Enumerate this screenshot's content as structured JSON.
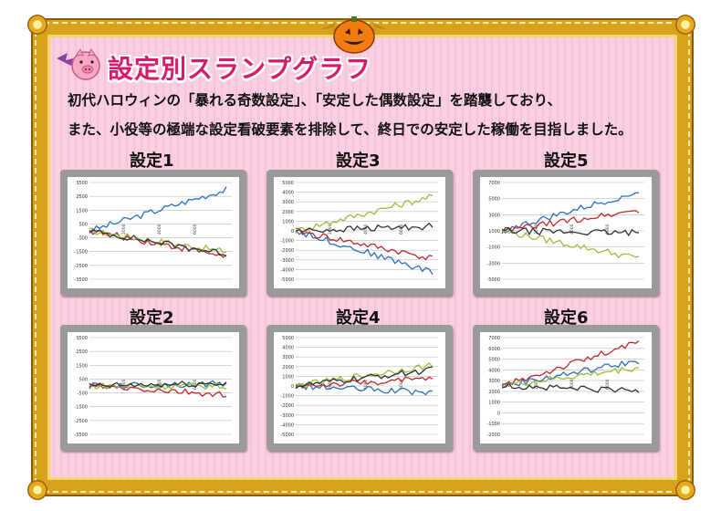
{
  "title": "設定別スランプグラフ",
  "description": [
    "初代ハロウィンの「暴れる奇数設定」、「安定した偶数設定」を踏襲しており、",
    "また、小役等の極端な設定看破要素を排除して、終日での安定した稼働を目指しました。"
  ],
  "colors": {
    "frame": "#d9a21c",
    "title": "#d61b6d",
    "background": "#f9cfe1"
  },
  "icons": [
    "pig-bat-icon",
    "pumpkin-icon"
  ],
  "charts": [
    {
      "label": "設定1",
      "yticks": [
        "3500",
        "2500",
        "1500",
        "500",
        "-500",
        "-1500",
        "-2500",
        "-3500"
      ],
      "xticks": [
        "2000",
        "4000",
        "6000"
      ]
    },
    {
      "label": "設定3",
      "yticks": [
        "5000",
        "4000",
        "3000",
        "2000",
        "1000",
        "0",
        "-1000",
        "-2000",
        "-3000",
        "-4000",
        "-5000"
      ],
      "xticks": [
        "2000",
        "4000",
        "6000"
      ]
    },
    {
      "label": "設定5",
      "yticks": [
        "7000",
        "5000",
        "3000",
        "1000",
        "-1000",
        "-3000",
        "-5000"
      ],
      "xticks": [
        "2000",
        "4000",
        "6000"
      ]
    },
    {
      "label": "設定2",
      "yticks": [
        "3500",
        "2500",
        "1500",
        "500",
        "-500",
        "-1500",
        "-2500",
        "-3500"
      ],
      "xticks": [
        "2000",
        "4000",
        "6000"
      ]
    },
    {
      "label": "設定4",
      "yticks": [
        "5000",
        "4000",
        "3000",
        "2000",
        "1000",
        "0",
        "-1000",
        "-2000",
        "-3000",
        "-4000",
        "-5000"
      ],
      "xticks": [
        "2000",
        "4000",
        "6000"
      ]
    },
    {
      "label": "設定6",
      "yticks": [
        "7000",
        "6000",
        "5000",
        "4000",
        "3000",
        "2000",
        "1000",
        "0",
        "-1000",
        "-2000"
      ],
      "xticks": [
        "2000",
        "4000",
        "6000"
      ]
    }
  ]
}
